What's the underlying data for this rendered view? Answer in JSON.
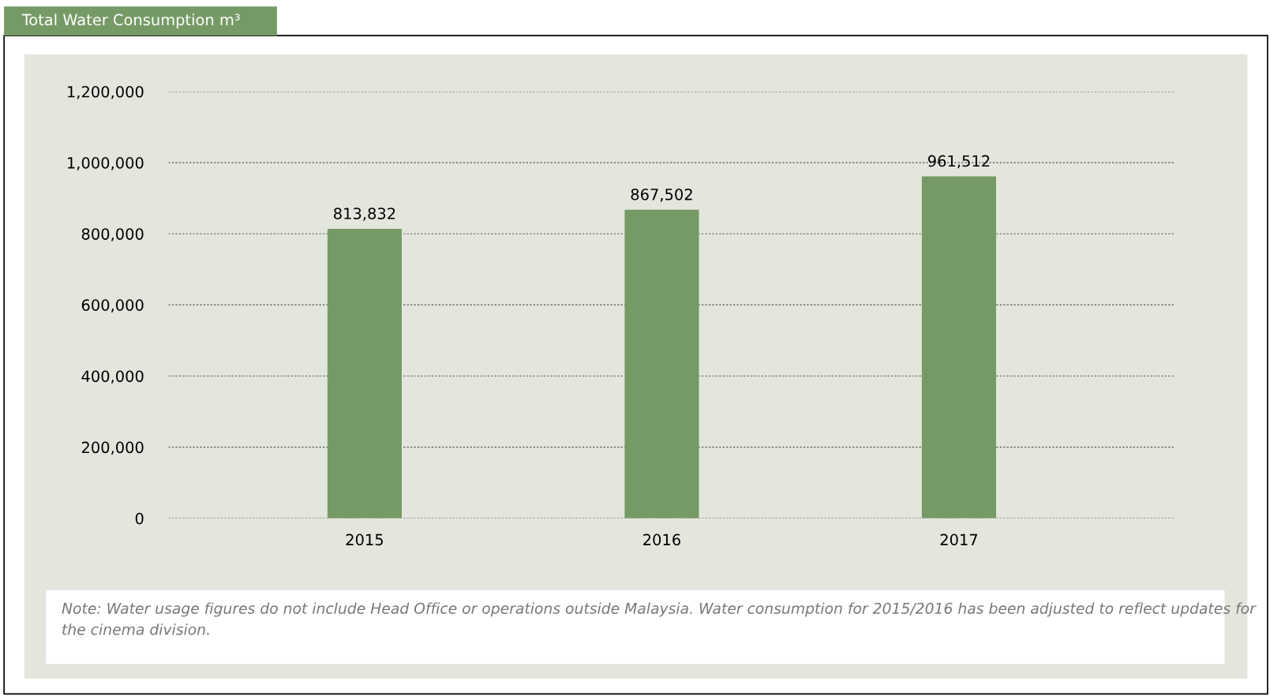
{
  "chart_data": {
    "type": "bar",
    "title": "Total Water Consumption m³",
    "categories": [
      "2015",
      "2016",
      "2017"
    ],
    "values": [
      813832,
      867502,
      961512
    ],
    "color": "#769a66",
    "ylim": [
      0,
      1200000
    ],
    "yticks": [
      {
        "value": 0,
        "label": "0"
      },
      {
        "value": 200000,
        "label": "200,000"
      },
      {
        "value": 400000,
        "label": "400,000"
      },
      {
        "value": 600000,
        "label": "600,000"
      },
      {
        "value": 800000,
        "label": "800,000"
      },
      {
        "value": 1000000,
        "label": "1,000,000"
      },
      {
        "value": 1200000,
        "label": "1,200,000"
      }
    ],
    "value_labels": [
      "813,832",
      "867,502",
      "961,512"
    ],
    "grid": "y",
    "legend": false,
    "annotations": [
      "Note: Water usage figures do not include Head Office or operations outside Malaysia. Water consumption for 2015/2016 has been adjusted to reflect updates for the cinema division."
    ]
  }
}
